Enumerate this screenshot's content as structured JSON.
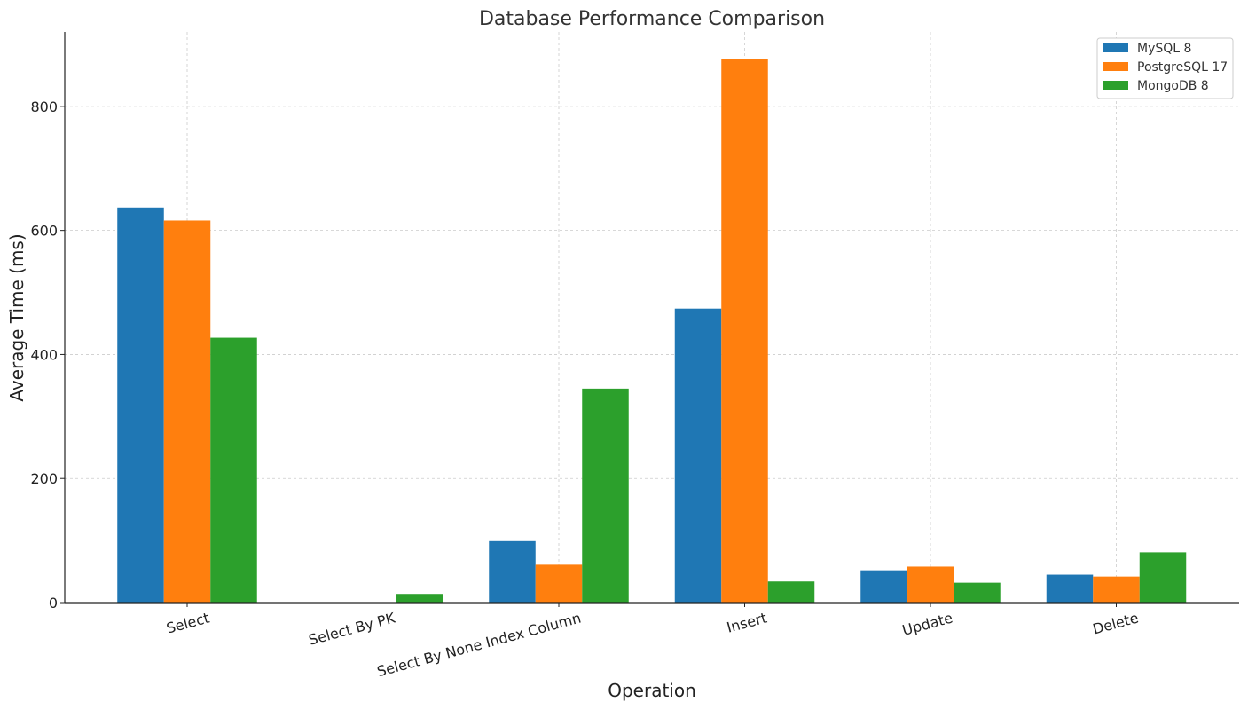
{
  "chart_data": {
    "type": "bar",
    "title": "Database Performance Comparison",
    "xlabel": "Operation",
    "ylabel": "Average Time (ms)",
    "ylim": [
      0,
      920
    ],
    "yticks": [
      0,
      200,
      400,
      600,
      800
    ],
    "grid": true,
    "legend_position": "top-right",
    "categories": [
      "Select",
      "Select By PK",
      "Select By None Index Column",
      "Insert",
      "Update",
      "Delete"
    ],
    "series": [
      {
        "name": "MySQL 8",
        "color": "#1f77b4",
        "values": [
          637,
          0,
          99,
          474,
          52,
          45
        ]
      },
      {
        "name": "PostgreSQL 17",
        "color": "#ff7f0e",
        "values": [
          616,
          0,
          61,
          877,
          58,
          42
        ]
      },
      {
        "name": "MongoDB 8",
        "color": "#2ca02c",
        "values": [
          427,
          14,
          345,
          34,
          32,
          81
        ]
      }
    ]
  }
}
